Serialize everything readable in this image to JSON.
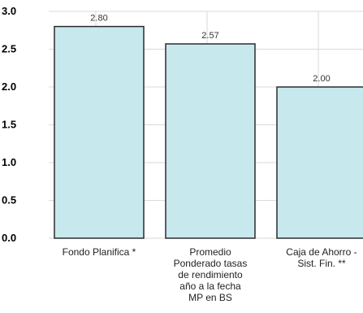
{
  "chart_data": {
    "type": "bar",
    "categories": [
      "Fondo Planifica *",
      "Promedio Ponderado tasas de rendimiento año a la fecha MP en BS",
      "Caja de Ahorro - Sist. Fin. **"
    ],
    "values": [
      2.8,
      2.57,
      2.0
    ],
    "data_labels": [
      "2.80",
      "2.57",
      "2.00"
    ],
    "y_ticks": [
      "0.0",
      "0.5",
      "1.0",
      "1.5",
      "2.0",
      "2.5",
      "3.0"
    ],
    "ylim": [
      0,
      3.0
    ],
    "grid": true,
    "legend": "none"
  },
  "colors": {
    "bar_fill": "#c7e9ee",
    "bar_stroke": "#2b2b2b",
    "grid": "#d9d9d9",
    "text": "#222222"
  }
}
